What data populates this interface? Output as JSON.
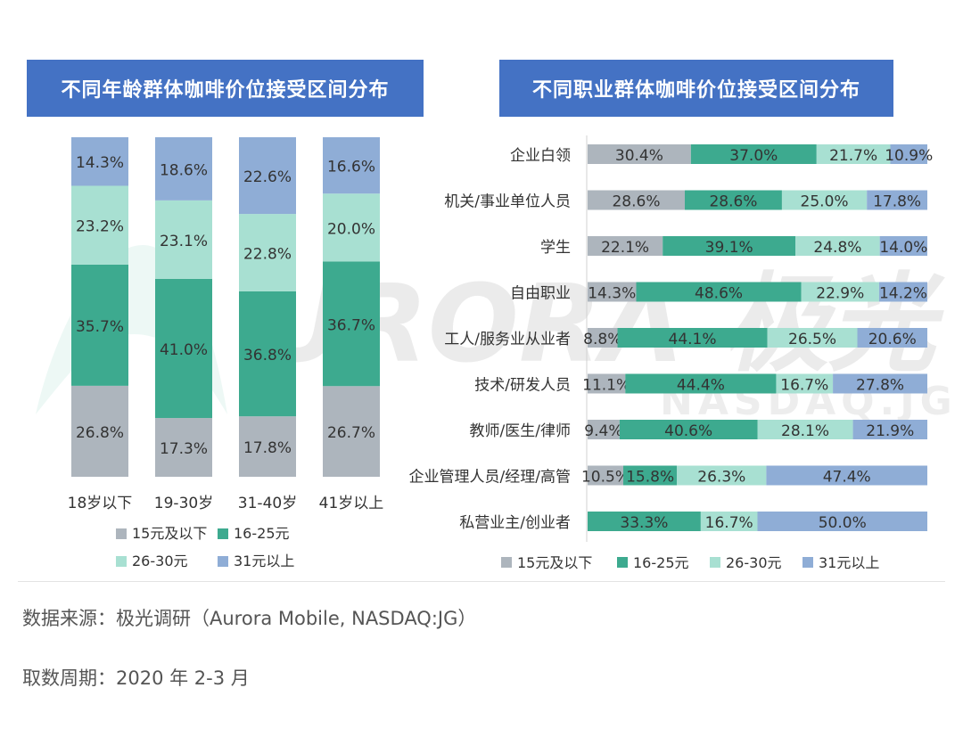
{
  "titles": {
    "left": "不同年龄群体咖啡价位接受区间分布",
    "right": "不同职业群体咖啡价位接受区间分布"
  },
  "footer": {
    "source": "数据来源：极光调研（Aurora Mobile, NASDAQ:JG）",
    "period": "取数周期：2020 年 2-3 月"
  },
  "watermark": {
    "brand": "URORA 极光",
    "sub": "NASDAQ.JG"
  },
  "colors": {
    "c1": "#adb5bd",
    "c2": "#3daa8f",
    "c3": "#a8e0d2",
    "c4": "#8fadd6",
    "title_bg": "#4472c4"
  },
  "chart_data": [
    {
      "type": "bar",
      "orientation": "vertical",
      "stacked": "percent",
      "title": "不同年龄群体咖啡价位接受区间分布",
      "categories": [
        "18岁以下",
        "19-30岁",
        "31-40岁",
        "41岁以上"
      ],
      "series": [
        {
          "name": "15元及以下",
          "values": [
            26.8,
            17.3,
            17.8,
            26.7
          ],
          "labels": [
            "26.8%",
            "17.3%",
            "17.8%",
            "26.7%"
          ]
        },
        {
          "name": "16-25元",
          "values": [
            35.7,
            41.0,
            36.8,
            36.7
          ],
          "labels": [
            "35.7%",
            "41.0%",
            "36.8%",
            "36.7%"
          ]
        },
        {
          "name": "26-30元",
          "values": [
            23.2,
            23.1,
            22.8,
            20.0
          ],
          "labels": [
            "23.2%",
            "23.1%",
            "22.8%",
            "20.0%"
          ]
        },
        {
          "name": "31元以上",
          "values": [
            14.3,
            18.6,
            22.6,
            16.6
          ],
          "labels": [
            "14.3%",
            "18.6%",
            "22.6%",
            "16.6%"
          ]
        }
      ],
      "legend": "bottom"
    },
    {
      "type": "bar",
      "orientation": "horizontal",
      "stacked": "percent",
      "title": "不同职业群体咖啡价位接受区间分布",
      "categories": [
        "企业白领",
        "机关/事业单位人员",
        "学生",
        "自由职业",
        "工人/服务业从业者",
        "技术/研发人员",
        "教师/医生/律师",
        "企业管理人员/经理/高管",
        "私营业主/创业者"
      ],
      "series": [
        {
          "name": "15元及以下",
          "values": [
            30.4,
            28.6,
            22.1,
            14.3,
            8.8,
            11.1,
            9.4,
            10.5,
            0
          ],
          "labels": [
            "30.4%",
            "28.6%",
            "22.1%",
            "14.3%",
            "8.8%",
            "11.1%",
            "9.4%",
            "10.5%",
            ""
          ]
        },
        {
          "name": "16-25元",
          "values": [
            37.0,
            28.6,
            39.1,
            48.6,
            44.1,
            44.4,
            40.6,
            15.8,
            33.3
          ],
          "labels": [
            "37.0%",
            "28.6%",
            "39.1%",
            "48.6%",
            "44.1%",
            "44.4%",
            "40.6%",
            "15.8%",
            "33.3%"
          ]
        },
        {
          "name": "26-30元",
          "values": [
            21.7,
            25.0,
            24.8,
            22.9,
            26.5,
            16.7,
            28.1,
            26.3,
            16.7
          ],
          "labels": [
            "21.7%",
            "25.0%",
            "24.8%",
            "22.9%",
            "26.5%",
            "16.7%",
            "28.1%",
            "26.3%",
            "16.7%"
          ]
        },
        {
          "name": "31元以上",
          "values": [
            10.9,
            17.8,
            14.0,
            14.2,
            20.6,
            27.8,
            21.9,
            47.4,
            50.0
          ],
          "labels": [
            "10.9%",
            "17.8%",
            "14.0%",
            "14.2%",
            "20.6%",
            "27.8%",
            "21.9%",
            "47.4%",
            "50.0%"
          ]
        }
      ],
      "legend": "bottom"
    }
  ]
}
